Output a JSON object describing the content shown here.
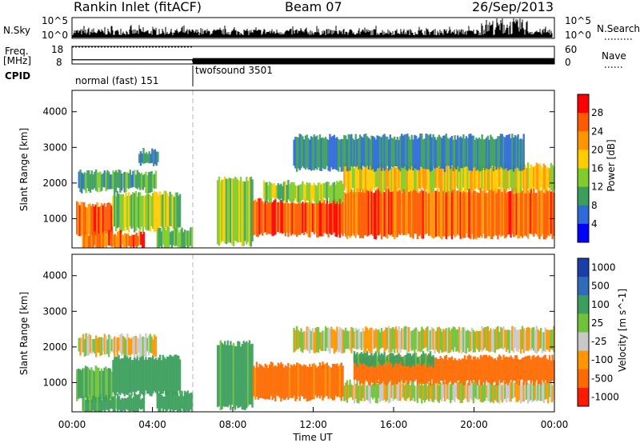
{
  "header": {
    "station": "Rankin Inlet (fitACF)",
    "beam": "Beam 07",
    "date": "26/Sep/2013"
  },
  "strips": {
    "nsky_label": "N.Sky",
    "nsearch_label": "N.Search",
    "nsky_ticks": [
      "10^5",
      "10^0"
    ],
    "nsearch_ticks": [
      "10^5",
      "10^0"
    ],
    "freq_label_1": "Freq.",
    "freq_label_2": "[MHz]",
    "freq_ticks": [
      "18",
      "8"
    ],
    "nave_label": "Nave",
    "nave_ticks": [
      "60",
      "0"
    ],
    "cpid_label": "CPID",
    "cpid_segments": [
      {
        "label": "normal (fast) 151",
        "start_hour": 0,
        "end_hour": 6
      },
      {
        "label": "twofsound 3501",
        "start_hour": 6,
        "end_hour": 24
      }
    ],
    "freq_mhz_normal": 10.4,
    "freq_mhz_twofsound": 9.6,
    "nave_normal": 58,
    "nave_twofsound": 20
  },
  "chart_data": [
    {
      "type": "heatmap",
      "title": "",
      "quantity": "Power",
      "xlabel": "",
      "ylabel": "Slant Range [km]",
      "xlim_hours": [
        0,
        24
      ],
      "ylim_km": [
        180,
        4600
      ],
      "y_ticks": [
        1000,
        2000,
        3000,
        4000
      ],
      "colorbar_label": "Power [dB]",
      "colorbar_ticks": [
        "28",
        "24",
        "20",
        "16",
        "12",
        "8",
        "4"
      ],
      "colorbar_colors": [
        "#ff0000",
        "#ff5a00",
        "#ff9600",
        "#ffcc00",
        "#7fcc2a",
        "#3c9e5c",
        "#2e6bd8",
        "#0000ff"
      ],
      "cpid_change_hour": 6,
      "echo_bands": [
        {
          "start": 0.2,
          "end": 2.0,
          "range_low": 500,
          "range_high": 1400,
          "value": 26
        },
        {
          "start": 2.0,
          "end": 5.4,
          "range_low": 700,
          "range_high": 1700,
          "value": 14
        },
        {
          "start": 0.5,
          "end": 3.6,
          "range_low": 180,
          "range_high": 600,
          "value": 25
        },
        {
          "start": 0.3,
          "end": 4.2,
          "range_low": 1800,
          "range_high": 2300,
          "value": 10
        },
        {
          "start": 3.3,
          "end": 4.3,
          "range_low": 2500,
          "range_high": 2900,
          "value": 8
        },
        {
          "start": 4.2,
          "end": 6.0,
          "range_low": 200,
          "range_high": 700,
          "value": 12
        },
        {
          "start": 7.2,
          "end": 9.0,
          "range_low": 300,
          "range_high": 2100,
          "value": 14
        },
        {
          "start": 9.0,
          "end": 13.5,
          "range_low": 550,
          "range_high": 1500,
          "value": 27
        },
        {
          "start": 9.5,
          "end": 13.5,
          "range_low": 1500,
          "range_high": 2000,
          "value": 14
        },
        {
          "start": 13.5,
          "end": 24.0,
          "range_low": 500,
          "range_high": 1800,
          "value": 25
        },
        {
          "start": 13.5,
          "end": 24.0,
          "range_low": 1800,
          "range_high": 2500,
          "value": 18
        },
        {
          "start": 11.0,
          "end": 22.5,
          "range_low": 2400,
          "range_high": 3300,
          "value": 8
        }
      ]
    },
    {
      "type": "heatmap",
      "title": "",
      "quantity": "Velocity",
      "xlabel": "Time UT",
      "ylabel": "Slant Range [km]",
      "xlim_hours": [
        0,
        24
      ],
      "x_ticks": [
        "00:00",
        "04:00",
        "08:00",
        "12:00",
        "16:00",
        "20:00",
        "00:00"
      ],
      "ylim_km": [
        180,
        4600
      ],
      "y_ticks": [
        1000,
        2000,
        3000,
        4000
      ],
      "colorbar_label": "Velocity [m s^-1]",
      "colorbar_ticks": [
        "1000",
        "500",
        "100",
        "25",
        "-25",
        "-100",
        "-500",
        "-1000"
      ],
      "colorbar_colors": [
        "#1a3fa8",
        "#2e6bb8",
        "#3c9e5c",
        "#6fc23a",
        "#c8c8c8",
        "#ff9600",
        "#ff6a00",
        "#ff1a00"
      ],
      "cpid_change_hour": 6,
      "echo_bands": [
        {
          "start": 0.2,
          "end": 2.0,
          "range_low": 500,
          "range_high": 1400,
          "value": 120
        },
        {
          "start": 2.0,
          "end": 5.4,
          "range_low": 700,
          "range_high": 1700,
          "value": 200
        },
        {
          "start": 0.5,
          "end": 3.6,
          "range_low": 180,
          "range_high": 600,
          "value": 150
        },
        {
          "start": 0.3,
          "end": 4.2,
          "range_low": 1800,
          "range_high": 2300,
          "value": 0
        },
        {
          "start": 4.2,
          "end": 6.0,
          "range_low": 200,
          "range_high": 700,
          "value": 300
        },
        {
          "start": 7.2,
          "end": 9.0,
          "range_low": 300,
          "range_high": 2100,
          "value": 150
        },
        {
          "start": 9.0,
          "end": 13.5,
          "range_low": 550,
          "range_high": 1500,
          "value": -150
        },
        {
          "start": 13.5,
          "end": 24.0,
          "range_low": 500,
          "range_high": 1000,
          "value": 0
        },
        {
          "start": 14.0,
          "end": 24.0,
          "range_low": 1000,
          "range_high": 1700,
          "value": -200
        },
        {
          "start": 14.0,
          "end": 18.0,
          "range_low": 1500,
          "range_high": 1800,
          "value": 150
        },
        {
          "start": 11.0,
          "end": 24.0,
          "range_low": 1900,
          "range_high": 2500,
          "value": 0
        }
      ]
    }
  ]
}
